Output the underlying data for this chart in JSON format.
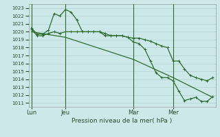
{
  "title": "Pression niveau de la mer( hPa )",
  "bg_color": "#cce8e8",
  "grid_color": "#b0d0d0",
  "line_color": "#2d6a2d",
  "ylim": [
    1010.5,
    1023.5
  ],
  "yticks": [
    1011,
    1012,
    1013,
    1014,
    1015,
    1016,
    1017,
    1018,
    1019,
    1020,
    1021,
    1022,
    1023
  ],
  "xtick_labels": [
    "Lun",
    "Jeu",
    "Mar",
    "Mer"
  ],
  "xtick_positions": [
    0,
    6,
    18,
    25
  ],
  "vlines": [
    0,
    6,
    18,
    25
  ],
  "num_points": 33,
  "line1_x": [
    0,
    1,
    2,
    3,
    4,
    5,
    6,
    7,
    8,
    9,
    10,
    11,
    12,
    13,
    14,
    15,
    16,
    17,
    18,
    19,
    20,
    21,
    22,
    23,
    24,
    25,
    26,
    27,
    28,
    29,
    30,
    31,
    32
  ],
  "line1_y": [
    1020.5,
    1019.7,
    1019.7,
    1020.2,
    1022.3,
    1022.0,
    1022.8,
    1022.5,
    1021.5,
    1020.0,
    1020.0,
    1020.0,
    1020.0,
    1019.8,
    1019.5,
    1019.5,
    1019.5,
    1019.3,
    1018.7,
    1018.5,
    1017.8,
    1016.3,
    1014.8,
    1014.2,
    1014.2,
    1013.8,
    1012.5,
    1011.3,
    1011.5,
    1011.7,
    1011.2,
    1011.2,
    1011.8
  ],
  "line2_x": [
    0,
    1,
    2,
    3,
    4,
    5,
    6,
    7,
    8,
    9,
    10,
    11,
    12,
    13,
    14,
    15,
    16,
    17,
    18,
    19,
    20,
    21,
    22,
    23,
    24,
    25,
    26,
    27,
    28,
    29,
    30,
    31,
    32
  ],
  "line2_y": [
    1020.3,
    1019.5,
    1019.5,
    1019.8,
    1020.0,
    1019.8,
    1020.0,
    1020.0,
    1020.0,
    1020.0,
    1020.0,
    1020.0,
    1020.0,
    1019.5,
    1019.5,
    1019.5,
    1019.5,
    1019.3,
    1019.2,
    1019.2,
    1019.0,
    1018.8,
    1018.5,
    1018.2,
    1018.0,
    1016.3,
    1016.3,
    1015.3,
    1014.5,
    1014.2,
    1014.0,
    1013.8,
    1014.2
  ],
  "line3_x": [
    0,
    6,
    18,
    25,
    32
  ],
  "line3_y": [
    1020.0,
    1019.3,
    1016.5,
    1014.2,
    1011.7
  ]
}
